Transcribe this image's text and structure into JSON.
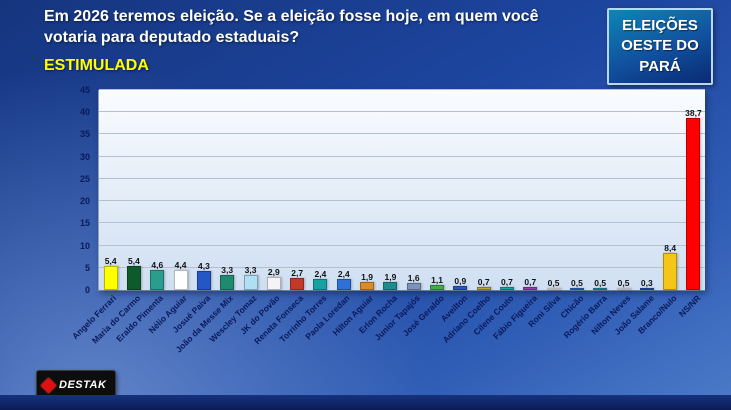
{
  "slide": {
    "title": "Em 2026 teremos eleição. Se a eleição fosse hoje, em quem você votaria para deputado estaduais?",
    "subtitle": "ESTIMULADA",
    "badge": "ELEIÇÕES OESTE DO PARÁ",
    "logo": "DESTAK"
  },
  "colors": {
    "subtitle": "#ffff00",
    "badge_border": "#b9d8f0",
    "leader_bar": "#ff0000",
    "blank_null_bar": "#f5c518"
  },
  "chart_data": {
    "type": "bar",
    "title": "",
    "xlabel": "",
    "ylabel": "",
    "categories": [
      "Angelo Ferrari",
      "Maria do Carmo",
      "Eraldo Pimenta",
      "Nélio Aguiar",
      "Josué Paiva",
      "João da Messe Mix",
      "Wescley Tomaz",
      "JK do Povão",
      "Renata Fonseca",
      "Torrinho Torres",
      "Paola Loredan",
      "Hilton Aguiar",
      "Erlon Rocha",
      "Junior Tapajós",
      "José Geraldo",
      "Aveilton",
      "Adriano Coelho",
      "Cilene Couto",
      "Fábio Figueira",
      "Roni Silva",
      "Chicão",
      "Rogério Barra",
      "Nilton Neves",
      "João Salame",
      "Branco/Nulo",
      "NS/NR"
    ],
    "values": [
      5.4,
      5.4,
      4.6,
      4.4,
      4.3,
      3.3,
      3.3,
      2.9,
      2.7,
      2.4,
      2.4,
      1.9,
      1.9,
      1.6,
      1.1,
      0.9,
      0.7,
      0.7,
      0.7,
      0.5,
      0.5,
      0.5,
      0.5,
      0.3,
      8.4,
      38.7
    ],
    "value_labels": [
      "5,4",
      "5,4",
      "4,6",
      "4,4",
      "4,3",
      "3,3",
      "3,3",
      "2,9",
      "2,7",
      "2,4",
      "2,4",
      "1,9",
      "1,9",
      "1,6",
      "1,1",
      "0,9",
      "0,7",
      "0,7",
      "0,7",
      "0,5",
      "0,5",
      "0,5",
      "0,5",
      "0,3",
      "8,4",
      "38,7"
    ],
    "bar_colors": [
      "#ffff00",
      "#0e5a2a",
      "#2a9d8f",
      "#ffffff",
      "#2457c5",
      "#1f8a70",
      "#aee0f2",
      "#f4f4f4",
      "#c0392b",
      "#17a2a2",
      "#2e6fd8",
      "#d98a2b",
      "#1c8c8c",
      "#7a93b8",
      "#3fae49",
      "#2457c5",
      "#b5a642",
      "#20a39e",
      "#8e44ad",
      "#ffffff",
      "#2e6fd8",
      "#17a2a2",
      "#ffffff",
      "#2457c5",
      "#f5c518",
      "#ff0000"
    ],
    "ylim": [
      0,
      45
    ],
    "yticks": [
      0,
      5,
      10,
      15,
      20,
      25,
      30,
      35,
      40,
      45
    ],
    "grid": true,
    "legend_position": "none"
  }
}
